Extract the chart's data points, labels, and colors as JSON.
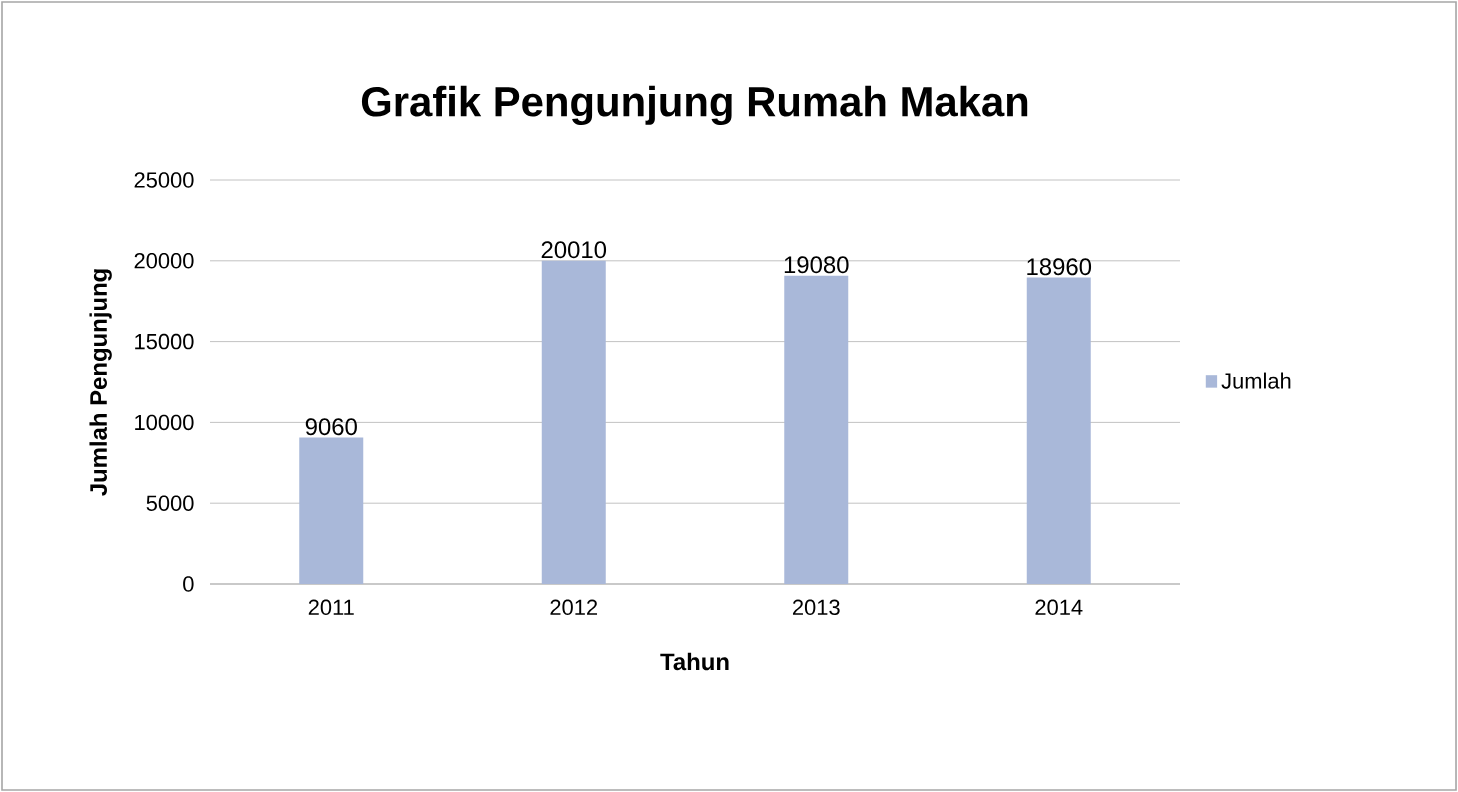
{
  "chart_data": {
    "type": "bar",
    "title": "Grafik Pengunjung Rumah Makan",
    "xlabel": "Tahun",
    "ylabel": "Jumlah Pengunjung",
    "categories": [
      "2011",
      "2012",
      "2013",
      "2014"
    ],
    "series": [
      {
        "name": "Jumlah",
        "color": "#a9b8d9",
        "values": [
          9060,
          20010,
          19080,
          18960
        ]
      }
    ],
    "ylim": [
      0,
      25000
    ],
    "yticks": [
      0,
      5000,
      10000,
      15000,
      20000,
      25000
    ],
    "grid": "y",
    "legend": "right",
    "data_labels": true
  }
}
